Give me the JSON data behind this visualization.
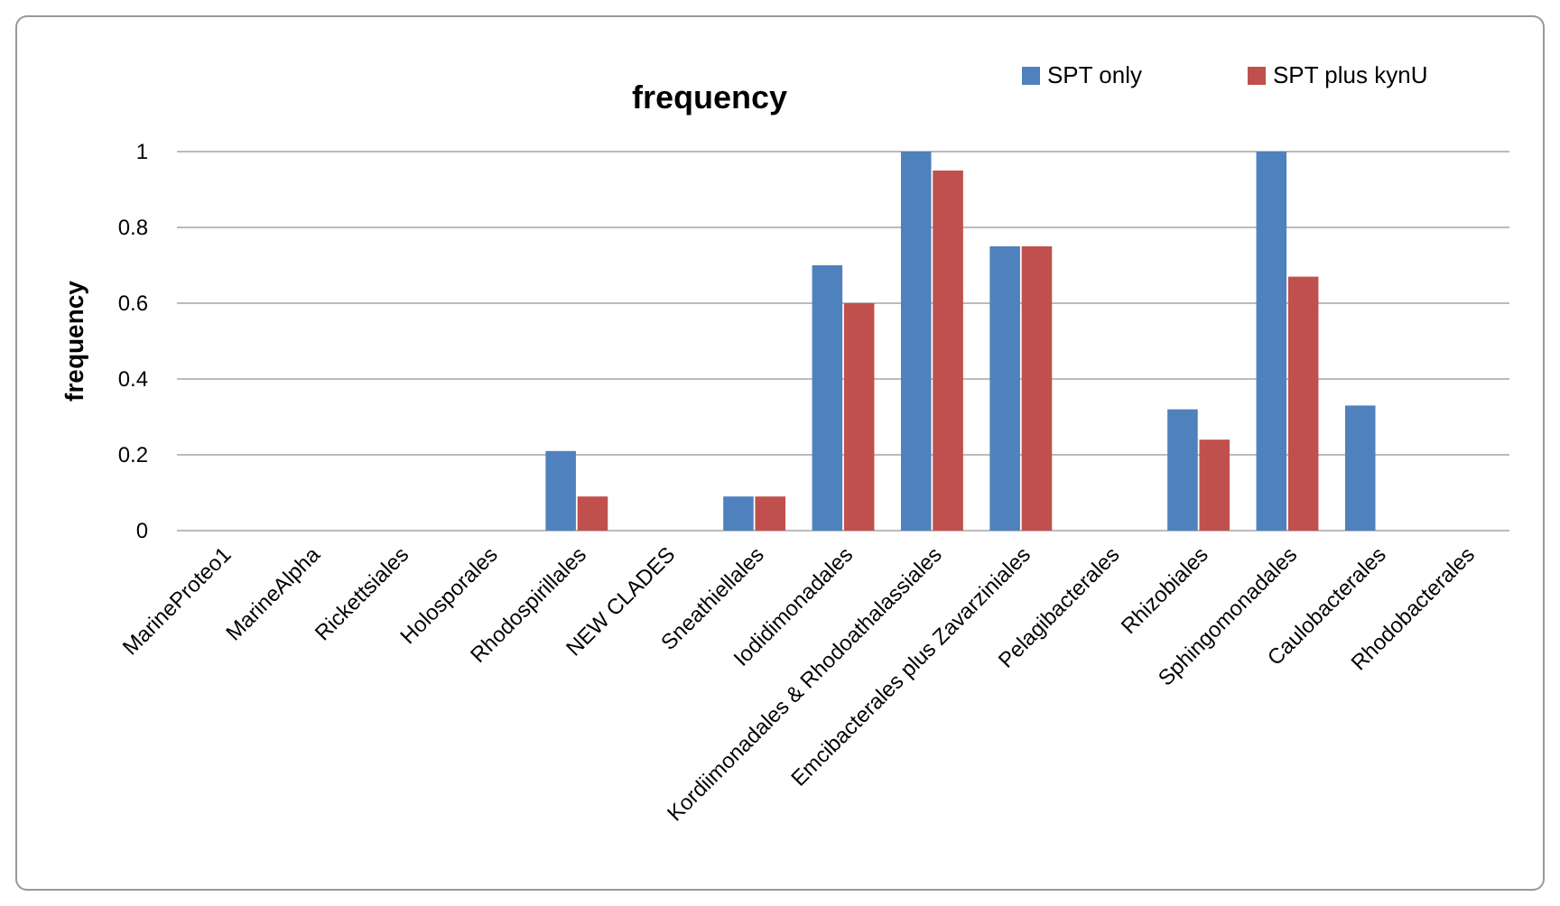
{
  "chart_data": {
    "type": "bar",
    "title": "frequency",
    "ylabel": "frequency",
    "categories": [
      "MarineProteo1",
      "MarineAlpha",
      "Rickettsiales",
      "Holosporales",
      "Rhodospirillales",
      "NEW CLADES",
      "Sneathiellales",
      "Iodidimonadales",
      "Kordiimonadales & Rhodoathalassiales",
      "Emcibacterales plus Zavarziniales",
      "Pelagibacterales",
      "Rhizobiales",
      "Sphingomonadales",
      "Caulobacterales",
      "Rhodobacterales"
    ],
    "series": [
      {
        "name": "SPT only",
        "color": "#4f81bd",
        "values": [
          0,
          0,
          0,
          0,
          0.21,
          0,
          0.09,
          0.7,
          1,
          0.75,
          0,
          0.32,
          1,
          0.33,
          0
        ]
      },
      {
        "name": "SPT plus kynU",
        "color": "#c0504d",
        "values": [
          0,
          0,
          0,
          0,
          0.09,
          0,
          0.09,
          0.6,
          0.95,
          0.75,
          0,
          0.24,
          0.67,
          0,
          0
        ]
      }
    ],
    "ylim": [
      0,
      1
    ],
    "yticks": [
      0,
      0.2,
      0.4,
      0.6,
      0.8,
      1
    ],
    "grid": "y",
    "legend": "top right"
  }
}
